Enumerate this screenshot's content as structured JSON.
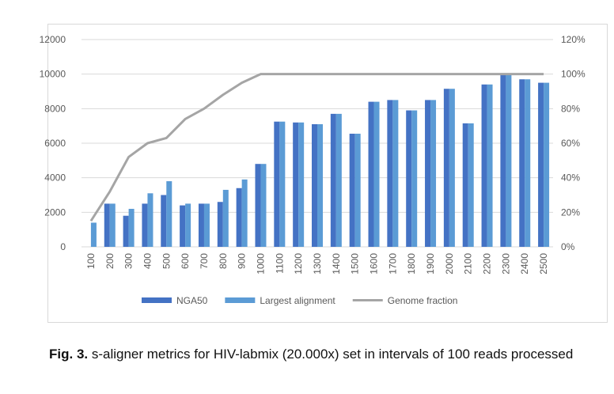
{
  "chart_data": {
    "type": "bar",
    "categories": [
      "100",
      "200",
      "300",
      "400",
      "500",
      "600",
      "700",
      "800",
      "900",
      "1000",
      "1100",
      "1200",
      "1300",
      "1400",
      "1500",
      "1600",
      "1700",
      "1800",
      "1900",
      "2000",
      "2100",
      "2200",
      "2300",
      "2400",
      "2500"
    ],
    "series": [
      {
        "name": "NGA50",
        "type": "bar",
        "axis": "left",
        "color": "#4472c4",
        "values": [
          0,
          2500,
          1800,
          2500,
          3000,
          2400,
          2500,
          2600,
          3400,
          4800,
          7250,
          7200,
          7100,
          7700,
          6550,
          8400,
          8500,
          7900,
          8500,
          9150,
          7150,
          9400,
          9950,
          9700,
          9500
        ]
      },
      {
        "name": "Largest alignment",
        "type": "bar",
        "axis": "left",
        "color": "#5b9bd5",
        "values": [
          1400,
          2500,
          2200,
          3100,
          3800,
          2500,
          2500,
          3300,
          3900,
          4800,
          7250,
          7200,
          7100,
          7700,
          6550,
          8400,
          8500,
          7900,
          8500,
          9150,
          7150,
          9400,
          9950,
          9700,
          9500
        ]
      },
      {
        "name": "Genome fraction",
        "type": "line",
        "axis": "right",
        "color": "#a5a5a5",
        "values": [
          15,
          32,
          52,
          60,
          63,
          74,
          80,
          88,
          95,
          100,
          100,
          100,
          100,
          100,
          100,
          100,
          100,
          100,
          100,
          100,
          100,
          100,
          100,
          100,
          100
        ]
      }
    ],
    "y_left": {
      "ticks": [
        "0",
        "2000",
        "4000",
        "6000",
        "8000",
        "10000",
        "12000"
      ],
      "lim": [
        0,
        12000
      ]
    },
    "y_right": {
      "ticks": [
        "0%",
        "20%",
        "40%",
        "60%",
        "80%",
        "100%",
        "120%"
      ],
      "lim": [
        0,
        120
      ]
    },
    "grid": true,
    "legend_position": "bottom"
  },
  "caption": {
    "label": "Fig. 3.",
    "text": " s-aligner metrics for HIV-labmix (20.000x) set in intervals of 100 reads processed"
  }
}
